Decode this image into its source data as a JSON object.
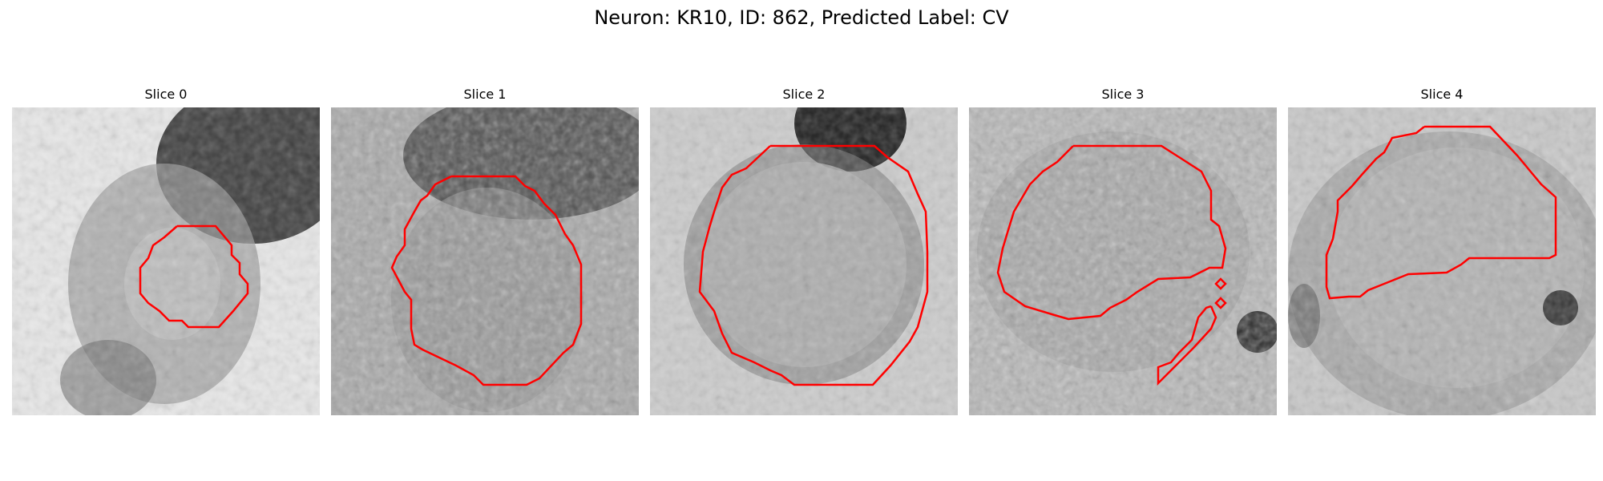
{
  "figure": {
    "title": "Neuron: KR10, ID: 862, Predicted Label: CV"
  },
  "panels": [
    {
      "title": "Slice 0"
    },
    {
      "title": "Slice 1"
    },
    {
      "title": "Slice 2"
    },
    {
      "title": "Slice 3"
    },
    {
      "title": "Slice 4"
    }
  ],
  "colors": {
    "contour": "#ff0000",
    "background": "#ffffff"
  }
}
